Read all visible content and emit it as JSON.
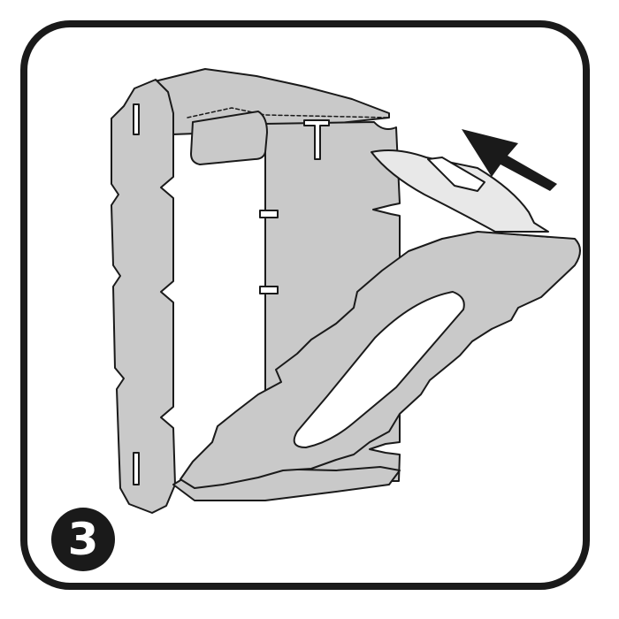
{
  "step": {
    "number": "3"
  },
  "colors": {
    "frame": "#1a1a1a",
    "panel": "#c9c9c9",
    "panel_light": "#e8e8e8",
    "outline": "#1a1a1a",
    "badge": "#1a1a1a",
    "badge_text": "#ffffff"
  },
  "icons": {
    "direction": "arrow-up-left-icon"
  }
}
